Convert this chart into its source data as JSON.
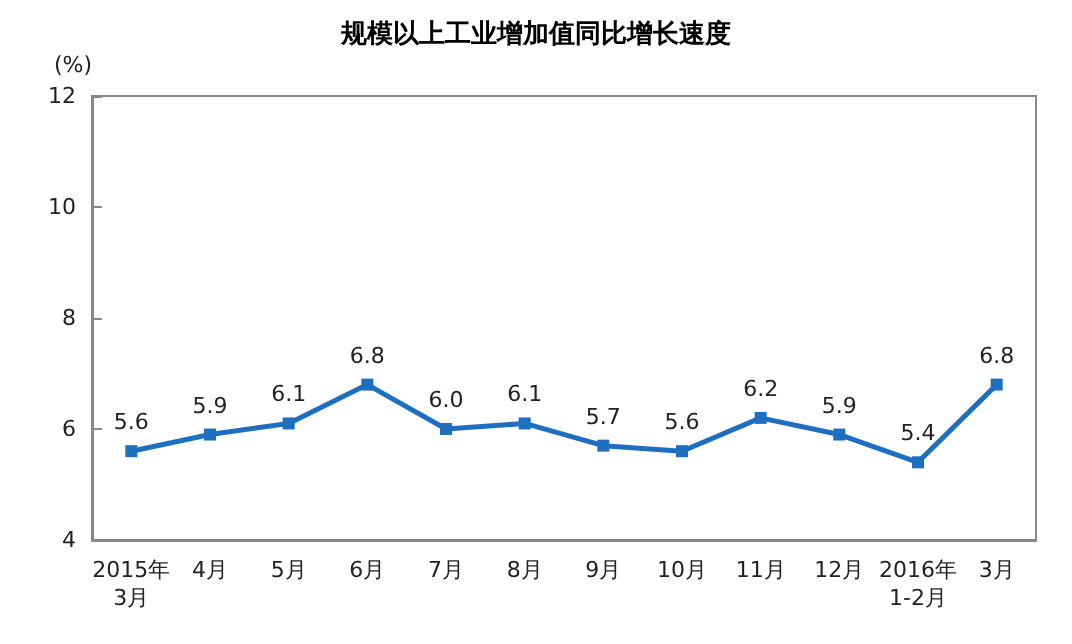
{
  "chart_data": {
    "type": "line",
    "title": "规模以上工业增加值同比增长速度",
    "ylabel": "(%)",
    "categories": [
      "2015年\n3月",
      "4月",
      "5月",
      "6月",
      "7月",
      "8月",
      "9月",
      "10月",
      "11月",
      "12月",
      "2016年\n1-2月",
      "3月"
    ],
    "values": [
      5.6,
      5.9,
      6.1,
      6.8,
      6.0,
      6.1,
      5.7,
      5.6,
      6.2,
      5.9,
      5.4,
      6.8
    ],
    "value_labels": [
      "5.6",
      "5.9",
      "6.1",
      "6.8",
      "6.0",
      "6.1",
      "5.7",
      "5.6",
      "6.2",
      "5.9",
      "5.4",
      "6.8"
    ],
    "color": "#1f6fc0",
    "marker": "square",
    "line_style": "solid",
    "ylim": [
      4,
      12
    ],
    "yticks": [
      4,
      6,
      8,
      10,
      12
    ],
    "grid": false
  }
}
